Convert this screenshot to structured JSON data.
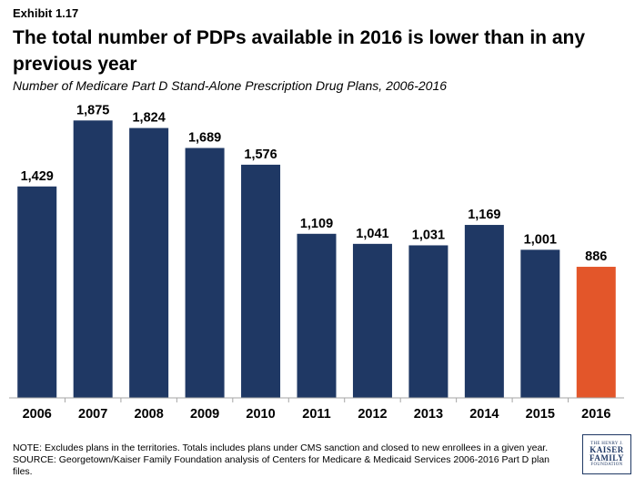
{
  "exhibit": "Exhibit 1.17",
  "title": "The total number of PDPs available in 2016 is lower than in any previous year",
  "subtitle": "Number of Medicare Part D Stand-Alone Prescription Drug Plans, 2006-2016",
  "notes": {
    "note": "NOTE: Excludes plans in the territories. Totals includes plans under CMS sanction and closed to new enrollees in a given year.",
    "source": "SOURCE: Georgetown/Kaiser Family Foundation analysis of Centers for Medicare & Medicaid Services 2006-2016 Part D plan files."
  },
  "logo": {
    "line1": "THE HENRY J.",
    "line2": "KAISER",
    "line3": "FAMILY",
    "line4": "FOUNDATION"
  },
  "colors": {
    "bar": "#1f3864",
    "highlight": "#e3562a",
    "axis": "#a6a6a6"
  },
  "chart_data": {
    "type": "bar",
    "categories": [
      "2006",
      "2007",
      "2008",
      "2009",
      "2010",
      "2011",
      "2012",
      "2013",
      "2014",
      "2015",
      "2016"
    ],
    "values": [
      1429,
      1875,
      1824,
      1689,
      1576,
      1109,
      1041,
      1031,
      1169,
      1001,
      886
    ],
    "data_labels": [
      "1,429",
      "1,875",
      "1,824",
      "1,689",
      "1,576",
      "1,109",
      "1,041",
      "1,031",
      "1,169",
      "1,001",
      "886"
    ],
    "highlight_category": "2016",
    "ylim": [
      0,
      2000
    ],
    "grid": false,
    "legend": "none"
  }
}
